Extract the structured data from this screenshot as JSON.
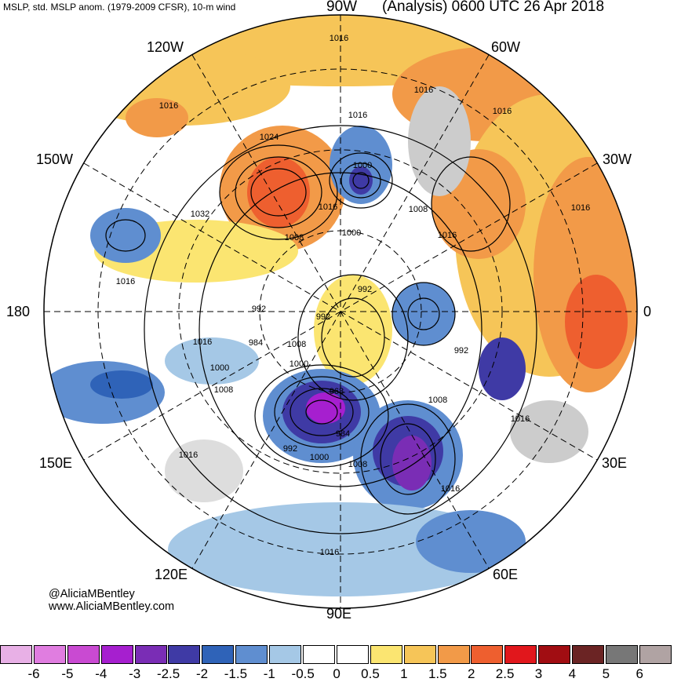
{
  "header": {
    "subtitle": "MSLP, std. MSLP anom. (1979-2009 CFSR), 10-m wind",
    "title": "(Analysis) 0600 UTC 26 Apr 2018"
  },
  "longitude_labels": {
    "top": "90W",
    "upper_left": "120W",
    "upper_right": "60W",
    "left_upper": "150W",
    "right_upper": "30W",
    "left": "180",
    "right": "0",
    "left_lower": "150E",
    "right_lower": "30E",
    "lower_left": "120E",
    "lower_right": "60E",
    "bottom": "90E"
  },
  "credit": {
    "handle": "@AliciaMBentley",
    "website": "www.AliciaMBentley.com"
  },
  "isobar_labels": [
    "1016",
    "1016",
    "1016",
    "1016",
    "1024",
    "1000",
    "1016",
    "1032",
    "1016",
    "1008",
    "1016",
    "1000",
    "1008",
    "1016",
    "1016",
    "992",
    "992",
    "992",
    "984",
    "1008",
    "1016",
    "1000",
    "1000",
    "992",
    "1008",
    "968",
    "984",
    "992",
    "1000",
    "1008",
    "1008",
    "1016",
    "1016",
    "1016",
    "1016"
  ],
  "colorbar": {
    "colors": [
      "#e8b0e6",
      "#e07de0",
      "#c94ad2",
      "#a61fcf",
      "#7a2db5",
      "#3f3aa5",
      "#2f63b8",
      "#5f8ed0",
      "#a5c8e6",
      "#ffffff",
      "#ffffff",
      "#fbe571",
      "#f6c558",
      "#f29a48",
      "#ee5f2f",
      "#e1171c",
      "#a10d12",
      "#6b2424",
      "#777777",
      "#b0a3a3"
    ],
    "tick_labels": [
      "-6",
      "-5",
      "-4",
      "-3",
      "-2.5",
      "-2",
      "-1.5",
      "-1",
      "-0.5",
      "0",
      "0.5",
      "1",
      "1.5",
      "2",
      "2.5",
      "3",
      "4",
      "5",
      "6"
    ]
  }
}
